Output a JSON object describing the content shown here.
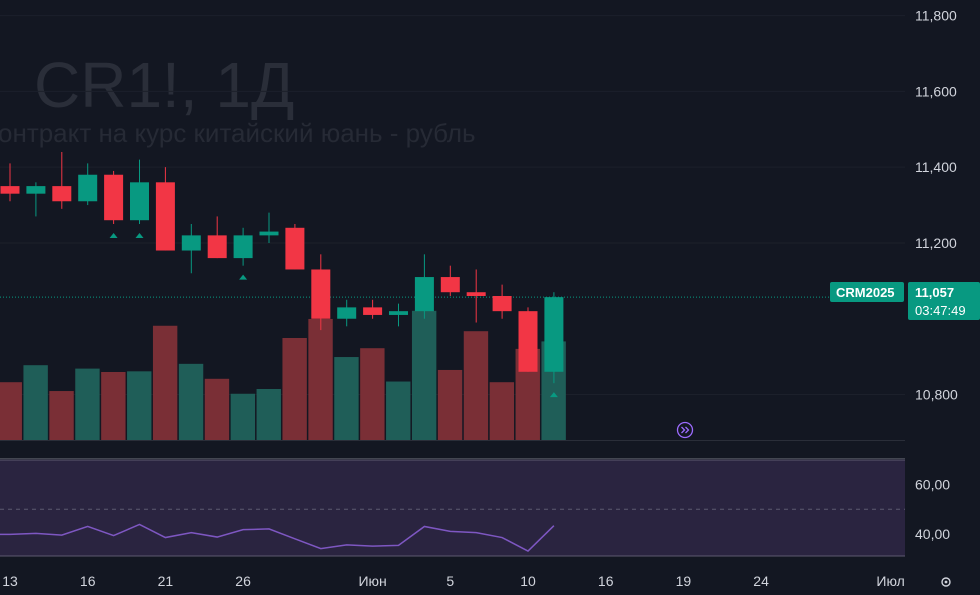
{
  "watermark": {
    "symbol": "CR1!, 1Д",
    "description": "онтракт на курс китайский юань - рубль"
  },
  "colors": {
    "background": "#131722",
    "up": "#089981",
    "down": "#f23645",
    "up_volume": "#1f5e58",
    "down_volume": "#7a2f36",
    "rsi_line": "#7e57c2",
    "rsi_band": "#2a2440",
    "badge": "#089981"
  },
  "price_badge": {
    "ticker": "CRM2025",
    "price": "11,057",
    "countdown": "03:47:49",
    "value": 11.057
  },
  "icons": {
    "go_to_realtime": "double-chevron-right-icon",
    "settings": "gear-icon"
  },
  "chart_data": {
    "type": "candlestick",
    "price_axis": {
      "ticks": [
        {
          "value": 11.8,
          "label": "11,800"
        },
        {
          "value": 11.6,
          "label": "11,600"
        },
        {
          "value": 11.4,
          "label": "11,400"
        },
        {
          "value": 11.2,
          "label": "11,200"
        },
        {
          "value": 10.8,
          "label": "10,800"
        }
      ],
      "range": [
        10.68,
        11.82
      ]
    },
    "rsi_axis": {
      "ticks": [
        {
          "value": 60,
          "label": "60,00"
        },
        {
          "value": 40,
          "label": "40,00"
        }
      ],
      "range": [
        31,
        70
      ],
      "band": [
        30,
        70
      ],
      "midline": 50
    },
    "time_axis": {
      "labels": [
        {
          "index": 0,
          "label": "13"
        },
        {
          "index": 3,
          "label": "16"
        },
        {
          "index": 6,
          "label": "21"
        },
        {
          "index": 9,
          "label": "26"
        },
        {
          "index": 14,
          "label": "Июн"
        },
        {
          "index": 17,
          "label": "5"
        },
        {
          "index": 20,
          "label": "10"
        },
        {
          "index": 23,
          "label": "16"
        },
        {
          "index": 26,
          "label": "19"
        },
        {
          "index": 29,
          "label": "24"
        },
        {
          "index": 34,
          "label": "Июл"
        }
      ]
    },
    "candles": [
      {
        "o": 11.35,
        "h": 11.41,
        "l": 11.31,
        "c": 11.33,
        "v": 0.85,
        "rsi": 39.8
      },
      {
        "o": 11.33,
        "h": 11.36,
        "l": 11.27,
        "c": 11.35,
        "v": 1.1,
        "rsi": 40.2
      },
      {
        "o": 11.35,
        "h": 11.44,
        "l": 11.29,
        "c": 11.31,
        "v": 0.72,
        "rsi": 39.5
      },
      {
        "o": 11.31,
        "h": 11.41,
        "l": 11.3,
        "c": 11.38,
        "v": 1.05,
        "rsi": 43.0
      },
      {
        "o": 11.38,
        "h": 11.39,
        "l": 11.25,
        "c": 11.26,
        "v": 1.0,
        "rsi": 39.3
      },
      {
        "o": 11.26,
        "h": 11.42,
        "l": 11.25,
        "c": 11.36,
        "v": 1.01,
        "rsi": 43.8
      },
      {
        "o": 11.36,
        "h": 11.4,
        "l": 11.18,
        "c": 11.18,
        "v": 1.68,
        "rsi": 38.5
      },
      {
        "o": 11.18,
        "h": 11.25,
        "l": 11.12,
        "c": 11.22,
        "v": 1.12,
        "rsi": 40.5
      },
      {
        "o": 11.22,
        "h": 11.27,
        "l": 11.16,
        "c": 11.16,
        "v": 0.9,
        "rsi": 38.7
      },
      {
        "o": 11.16,
        "h": 11.24,
        "l": 11.14,
        "c": 11.22,
        "v": 0.68,
        "rsi": 41.7
      },
      {
        "o": 11.22,
        "h": 11.28,
        "l": 11.2,
        "c": 11.23,
        "v": 0.75,
        "rsi": 42.0
      },
      {
        "o": 11.24,
        "h": 11.25,
        "l": 11.13,
        "c": 11.13,
        "v": 1.5,
        "rsi": 38.0
      },
      {
        "o": 11.13,
        "h": 11.17,
        "l": 10.97,
        "c": 11.0,
        "v": 1.78,
        "rsi": 34.0
      },
      {
        "o": 11.0,
        "h": 11.05,
        "l": 10.98,
        "c": 11.03,
        "v": 1.22,
        "rsi": 35.5
      },
      {
        "o": 11.03,
        "h": 11.05,
        "l": 11.0,
        "c": 11.01,
        "v": 1.35,
        "rsi": 35.0
      },
      {
        "o": 11.01,
        "h": 11.04,
        "l": 10.98,
        "c": 11.02,
        "v": 0.86,
        "rsi": 35.3
      },
      {
        "o": 11.02,
        "h": 11.17,
        "l": 11.0,
        "c": 11.11,
        "v": 1.9,
        "rsi": 43.0
      },
      {
        "o": 11.11,
        "h": 11.14,
        "l": 11.06,
        "c": 11.07,
        "v": 1.03,
        "rsi": 41.0
      },
      {
        "o": 11.07,
        "h": 11.13,
        "l": 10.99,
        "c": 11.06,
        "v": 1.6,
        "rsi": 40.5
      },
      {
        "o": 11.06,
        "h": 11.09,
        "l": 11.0,
        "c": 11.02,
        "v": 0.85,
        "rsi": 38.5
      },
      {
        "o": 11.02,
        "h": 11.03,
        "l": 10.86,
        "c": 10.86,
        "v": 1.34,
        "rsi": 33.0
      },
      {
        "o": 10.86,
        "h": 11.07,
        "l": 10.83,
        "c": 11.057,
        "v": 1.45,
        "rsi": 43.3
      }
    ],
    "up_markers": [
      4,
      5,
      9,
      21
    ]
  }
}
